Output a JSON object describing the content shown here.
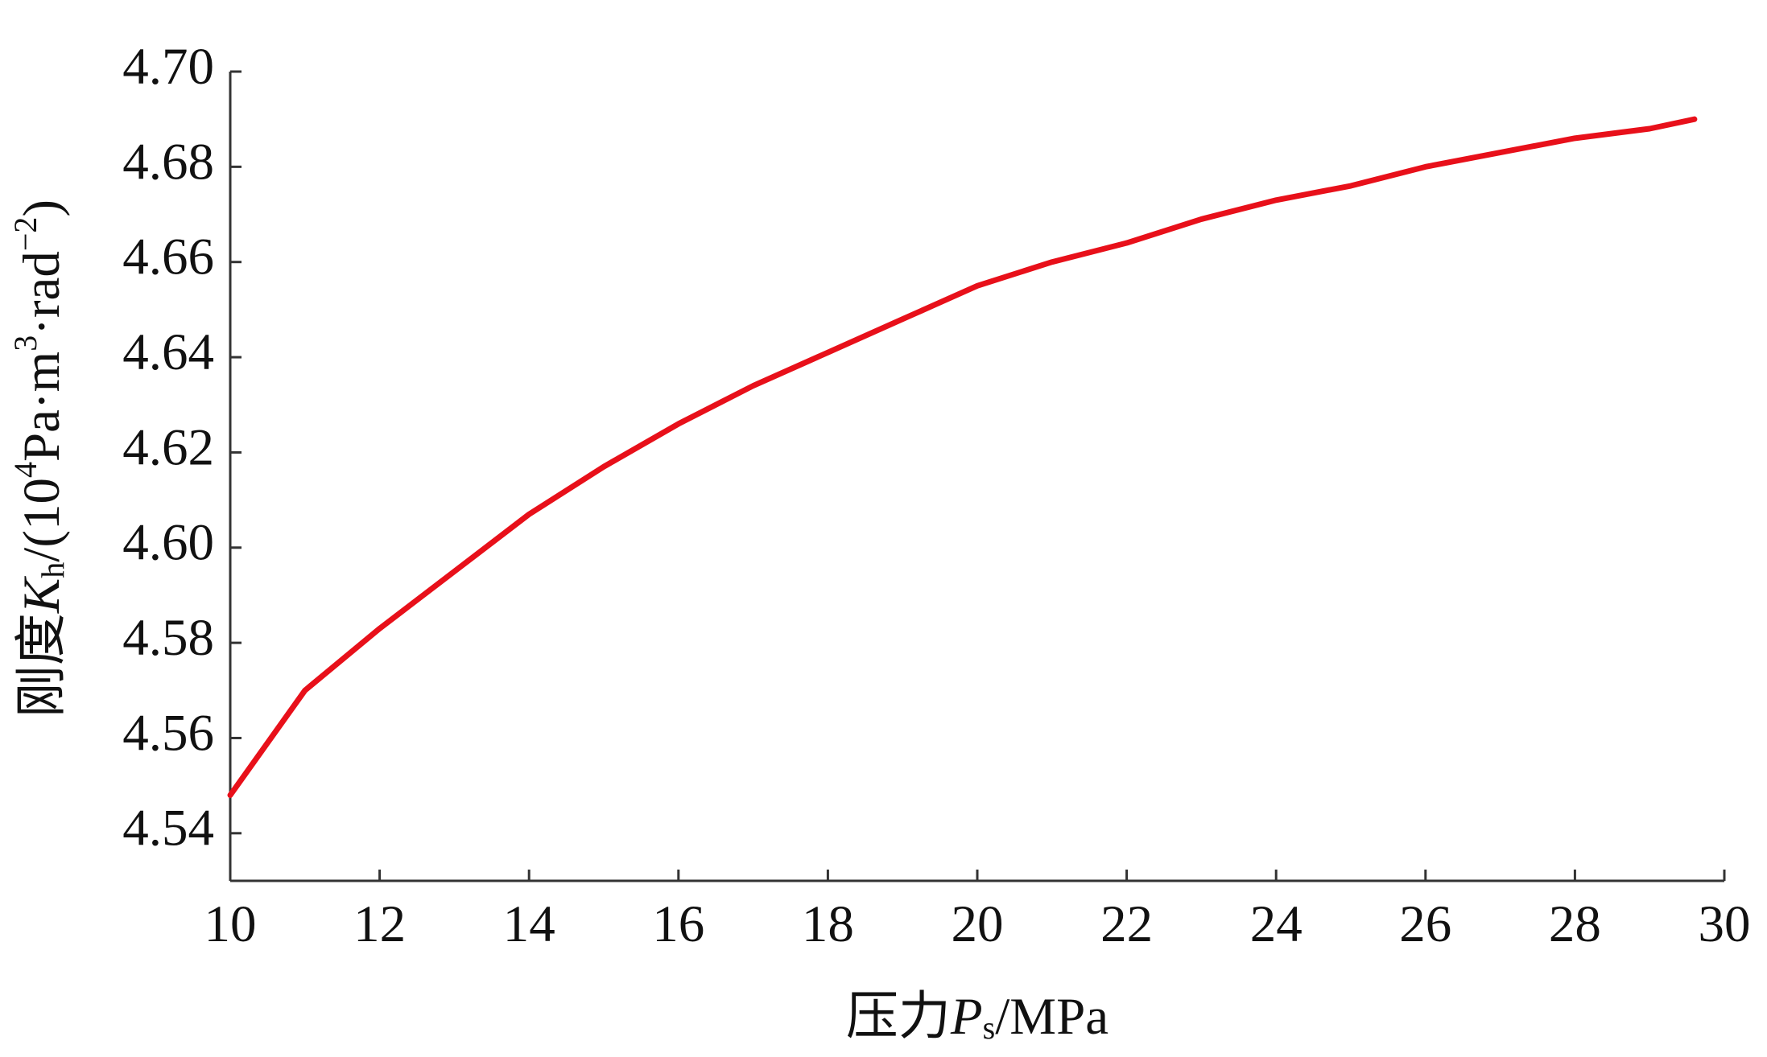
{
  "chart_data": {
    "type": "line",
    "xlabel": [
      {
        "text": "压力",
        "style": "normal"
      },
      {
        "text": "P",
        "style": "italic"
      },
      {
        "text": "s",
        "style": "sub"
      },
      {
        "text": "/MPa",
        "style": "normal"
      }
    ],
    "ylabel": [
      {
        "text": "刚度",
        "style": "normal"
      },
      {
        "text": "K",
        "style": "italic"
      },
      {
        "text": "h",
        "style": "sub"
      },
      {
        "text": "/(10",
        "style": "normal"
      },
      {
        "text": "4",
        "style": "sup"
      },
      {
        "text": "Pa·m",
        "style": "normal"
      },
      {
        "text": "3",
        "style": "sup"
      },
      {
        "text": "·rad",
        "style": "normal"
      },
      {
        "text": "−2",
        "style": "sup"
      },
      {
        "text": ")",
        "style": "normal"
      }
    ],
    "x": [
      10,
      11,
      12,
      13,
      14,
      15,
      16,
      17,
      18,
      19,
      20,
      21,
      22,
      23,
      24,
      25,
      26,
      27,
      28,
      29,
      29.6
    ],
    "series": [
      {
        "color": "#e8101a",
        "values": [
          4.548,
          4.57,
          4.583,
          4.595,
          4.607,
          4.617,
          4.626,
          4.634,
          4.641,
          4.648,
          4.655,
          4.66,
          4.664,
          4.669,
          4.673,
          4.676,
          4.68,
          4.683,
          4.686,
          4.688,
          4.69
        ]
      }
    ],
    "xlim": [
      10,
      30
    ],
    "xticks": [
      10,
      12,
      14,
      16,
      18,
      20,
      22,
      24,
      26,
      28,
      30
    ],
    "ylim": [
      4.53,
      4.7
    ],
    "yticks": [
      4.54,
      4.56,
      4.58,
      {
        "value": 4.6,
        "label": "4.60"
      },
      4.62,
      4.64,
      4.66,
      4.68,
      {
        "value": 4.7,
        "label": "4.70"
      }
    ],
    "grid": false
  }
}
